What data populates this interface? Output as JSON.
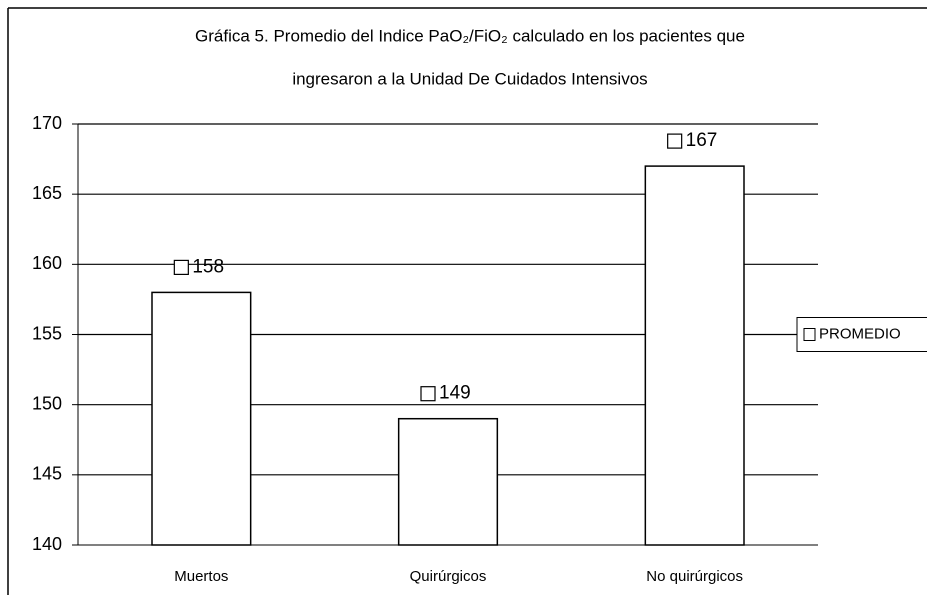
{
  "chart_data": {
    "type": "bar",
    "title": [
      "Gráfica 5. Promedio del Indice PaO₂/FiO₂ calculado en los pacientes que",
      "ingresaron a la Unidad De Cuidados Intensivos"
    ],
    "categories": [
      "Muertos",
      "Quirúrgicos",
      "No quirúrgicos"
    ],
    "series": [
      {
        "name": "PROMEDIO",
        "color": "#ffffff",
        "values": [
          158,
          149,
          167
        ]
      }
    ],
    "ylim": [
      140,
      170
    ],
    "yticks": [
      140,
      145,
      150,
      155,
      160,
      165,
      170
    ],
    "grid": true,
    "legend": "right"
  }
}
